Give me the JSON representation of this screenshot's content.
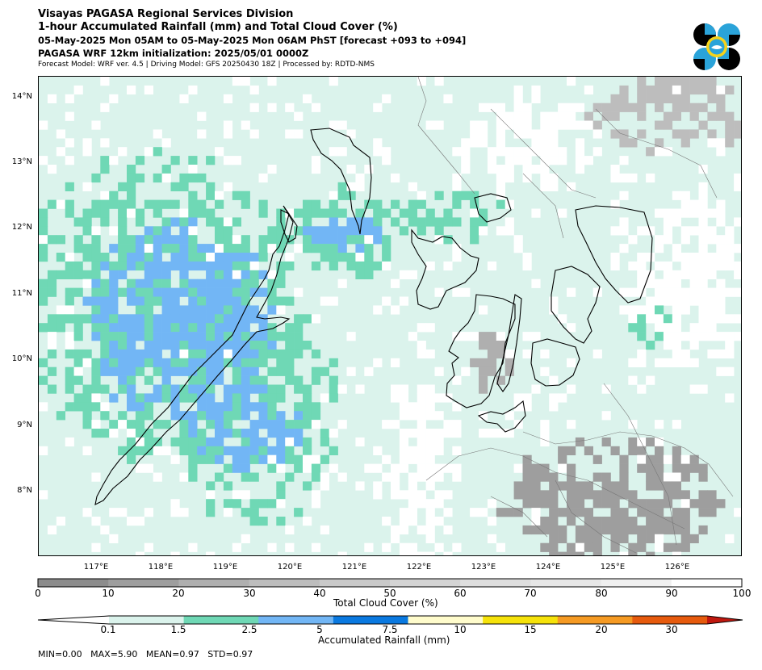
{
  "header": {
    "line1": "Visayas PAGASA Regional Services Division",
    "line2": "1-hour Accumulated Rainfall (mm) and Total Cloud Cover (%)",
    "line3": "05-May-2025 Mon 05AM to 05-May-2025 Mon 06AM PhST [forecast +093 to +094]",
    "line4": "PAGASA WRF 12km initialization: 2025/05/01 0000Z",
    "line5": "Forecast Model: WRF ver. 4.5 | Driving Model: GFS 20250430 18Z | Processed by: RDTD-NMS"
  },
  "logo": {
    "icon": "pagasa-logo-icon"
  },
  "map": {
    "lat_labels": [
      "14°N",
      "13°N",
      "12°N",
      "11°N",
      "10°N",
      "9°N",
      "8°N"
    ],
    "lon_labels": [
      "117°E",
      "118°E",
      "119°E",
      "120°E",
      "121°E",
      "122°E",
      "123°E",
      "124°E",
      "125°E",
      "126°E"
    ]
  },
  "cloud_colorbar": {
    "title": "Total Cloud Cover (%)",
    "ticks": [
      "0",
      "10",
      "20",
      "30",
      "40",
      "50",
      "60",
      "70",
      "80",
      "90",
      "100"
    ],
    "colors": [
      "#8c8c8c",
      "#9e9e9e",
      "#afafaf",
      "#bdbdbd",
      "#c9c9c9",
      "#d4d4d4",
      "#dedede",
      "#e7e7e7",
      "#f0f0f0",
      "#ffffff"
    ]
  },
  "rain_colorbar": {
    "title": "Accumulated Rainfall (mm)",
    "ticks": [
      "0.1",
      "1.5",
      "2.5",
      "5",
      "7.5",
      "10",
      "15",
      "20",
      "30"
    ],
    "colors": [
      "#ffffff",
      "#dbf3ec",
      "#6fd8b5",
      "#72b6f5",
      "#0a79e0",
      "#fffccc",
      "#f5e20a",
      "#f59a23",
      "#e65a0d",
      "#c0180f"
    ]
  },
  "stats": "MIN=0.00   MAX=5.90   MEAN=0.97   STD=0.97"
}
